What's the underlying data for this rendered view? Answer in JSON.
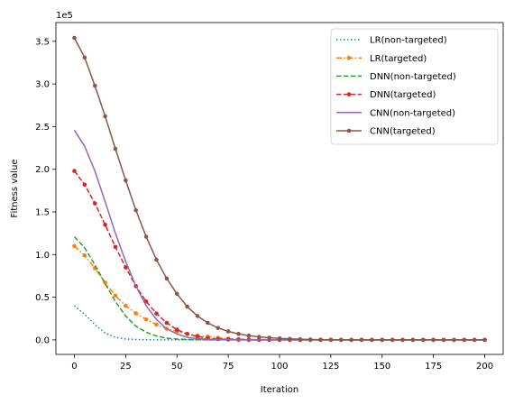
{
  "chart_data": {
    "type": "line",
    "title": "",
    "xlabel": "Iteration",
    "ylabel": "Fitness value",
    "y_scale_label": "1e5",
    "xlim": [
      -9,
      209
    ],
    "ylim": [
      -0.17,
      3.72
    ],
    "x_ticks": [
      0,
      25,
      50,
      75,
      100,
      125,
      150,
      175,
      200
    ],
    "x_tick_labels": [
      "0",
      "25",
      "50",
      "75",
      "100",
      "125",
      "150",
      "175",
      "200"
    ],
    "y_ticks": [
      0,
      0.5,
      1.0,
      1.5,
      2.0,
      2.5,
      3.0,
      3.5
    ],
    "y_tick_labels": [
      "0.0",
      "0.5",
      "1.0",
      "1.5",
      "2.0",
      "2.5",
      "3.0",
      "3.5"
    ],
    "grid": false,
    "legend_position": "top-right",
    "series": [
      {
        "name": "LR(non-targeted)",
        "color": "#1f77b4",
        "linestyle": "dotted",
        "marker": "none",
        "x": [
          0,
          5,
          10,
          15,
          20,
          25,
          30,
          35,
          40,
          50,
          60,
          80,
          100,
          125,
          150,
          175,
          200
        ],
        "y": [
          0.4,
          0.3,
          0.18,
          0.08,
          0.03,
          0.01,
          0.005,
          0.002,
          0.001,
          0.0,
          0.0,
          0.0,
          0.0,
          0.0,
          0.0,
          0.0,
          0.0
        ]
      },
      {
        "name": "LR(targeted)",
        "color": "#ff7f0e",
        "linestyle": "dashdot",
        "marker": "dot",
        "x": [
          0,
          5,
          10,
          15,
          20,
          25,
          30,
          35,
          40,
          45,
          50,
          55,
          60,
          65,
          70,
          75,
          80,
          85,
          90,
          95,
          100,
          105,
          110,
          115,
          120,
          125,
          130,
          135,
          140,
          145,
          150,
          155,
          160,
          165,
          170,
          175,
          180,
          185,
          190,
          195,
          200
        ],
        "y": [
          1.1,
          0.99,
          0.84,
          0.67,
          0.52,
          0.4,
          0.31,
          0.24,
          0.18,
          0.13,
          0.1,
          0.07,
          0.05,
          0.04,
          0.025,
          0.015,
          0.01,
          0.006,
          0.004,
          0.002,
          0.001,
          0.0,
          0.0,
          0.0,
          0.0,
          0.0,
          0.0,
          0.0,
          0.0,
          0.0,
          0.0,
          0.0,
          0.0,
          0.0,
          0.0,
          0.0,
          0.0,
          0.0,
          0.0,
          0.0,
          0.0
        ]
      },
      {
        "name": "DNN(non-targeted)",
        "color": "#2ca02c",
        "linestyle": "dashed",
        "marker": "none",
        "x": [
          0,
          5,
          10,
          15,
          20,
          25,
          30,
          35,
          40,
          45,
          50,
          55,
          60,
          70,
          80,
          100,
          125,
          150,
          175,
          200
        ],
        "y": [
          1.21,
          1.08,
          0.88,
          0.66,
          0.45,
          0.28,
          0.16,
          0.09,
          0.045,
          0.02,
          0.01,
          0.005,
          0.002,
          0.0,
          0.0,
          0.0,
          0.0,
          0.0,
          0.0,
          0.0
        ]
      },
      {
        "name": "DNN(targeted)",
        "color": "#d62728",
        "linestyle": "dashed",
        "marker": "dot",
        "x": [
          0,
          5,
          10,
          15,
          20,
          25,
          30,
          35,
          40,
          45,
          50,
          55,
          60,
          65,
          70,
          75,
          80,
          85,
          90,
          95,
          100,
          105,
          110,
          115,
          120,
          125,
          130,
          135,
          140,
          145,
          150,
          155,
          160,
          165,
          170,
          175,
          180,
          185,
          190,
          195,
          200
        ],
        "y": [
          1.98,
          1.82,
          1.6,
          1.35,
          1.09,
          0.85,
          0.63,
          0.45,
          0.31,
          0.2,
          0.12,
          0.07,
          0.04,
          0.02,
          0.01,
          0.005,
          0.002,
          0.001,
          0.0,
          0.0,
          0.0,
          0.0,
          0.0,
          0.0,
          0.0,
          0.0,
          0.0,
          0.0,
          0.0,
          0.0,
          0.0,
          0.0,
          0.0,
          0.0,
          0.0,
          0.0,
          0.0,
          0.0,
          0.0,
          0.0,
          0.0
        ]
      },
      {
        "name": "CNN(non-targeted)",
        "color": "#9467bd",
        "linestyle": "solid",
        "marker": "none",
        "x": [
          0,
          5,
          10,
          15,
          20,
          25,
          30,
          35,
          40,
          45,
          50,
          55,
          60,
          65,
          70,
          75,
          80,
          90,
          100,
          125,
          150,
          175,
          200
        ],
        "y": [
          2.46,
          2.27,
          1.98,
          1.62,
          1.25,
          0.92,
          0.63,
          0.4,
          0.24,
          0.13,
          0.07,
          0.03,
          0.015,
          0.008,
          0.004,
          0.002,
          0.001,
          0.0,
          0.0,
          0.0,
          0.0,
          0.0,
          0.0
        ]
      },
      {
        "name": "CNN(targeted)",
        "color": "#8c564b",
        "linestyle": "solid",
        "marker": "dot",
        "x": [
          0,
          5,
          10,
          15,
          20,
          25,
          30,
          35,
          40,
          45,
          50,
          55,
          60,
          65,
          70,
          75,
          80,
          85,
          90,
          95,
          100,
          105,
          110,
          115,
          120,
          125,
          130,
          135,
          140,
          145,
          150,
          155,
          160,
          165,
          170,
          175,
          180,
          185,
          190,
          195,
          200
        ],
        "y": [
          3.54,
          3.31,
          2.98,
          2.62,
          2.24,
          1.87,
          1.52,
          1.21,
          0.94,
          0.72,
          0.54,
          0.39,
          0.28,
          0.2,
          0.14,
          0.1,
          0.07,
          0.05,
          0.035,
          0.025,
          0.017,
          0.012,
          0.008,
          0.005,
          0.003,
          0.002,
          0.001,
          0.0,
          0.0,
          0.0,
          0.0,
          0.0,
          0.0,
          0.0,
          0.0,
          0.0,
          0.0,
          0.0,
          0.0,
          0.0,
          0.0
        ]
      }
    ]
  }
}
